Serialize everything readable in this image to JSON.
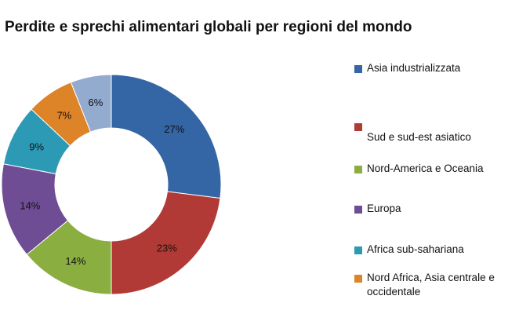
{
  "chart_data": {
    "type": "pie",
    "title": "Perdite e sprechi alimentari globali per regioni del mondo",
    "donut": true,
    "legend_position": "right",
    "slices": [
      {
        "name": "Asia industrializzata",
        "value": 27,
        "label": "27%",
        "color": "#3465a4"
      },
      {
        "name": "Sud e sud-est  asiatico",
        "value": 23,
        "label": "23%",
        "color": "#b23a36"
      },
      {
        "name": "Nord-America  e Oceania",
        "value": 14,
        "label": "14%",
        "color": "#8aae40"
      },
      {
        "name": "Europa",
        "value": 14,
        "label": "14%",
        "color": "#6e4d94"
      },
      {
        "name": "Africa sub-sahariana",
        "value": 9,
        "label": "9%",
        "color": "#2d9ab5"
      },
      {
        "name": "Nord Africa, Asia centrale  e occidentale",
        "value": 7,
        "label": "7%",
        "color": "#dd8328"
      },
      {
        "name": "",
        "value": 6,
        "label": "6%",
        "color": "#93abcf"
      }
    ]
  }
}
